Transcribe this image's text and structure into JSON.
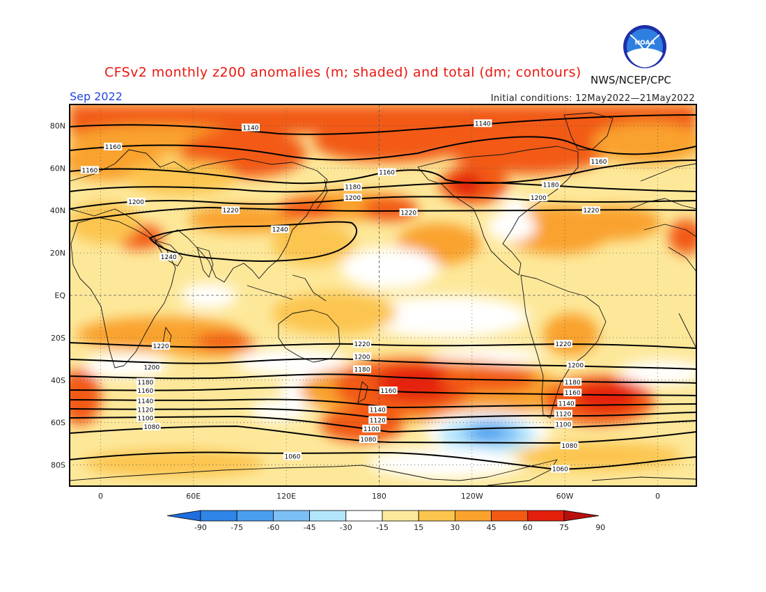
{
  "header": {
    "title": "CFSv2 monthly z200 anomalies (m; shaded) and total (dm; contours)",
    "agency": "NWS/NCEP/CPC",
    "logo_text": "NOAA",
    "valid_month": "Sep 2022",
    "initial_conditions": "Initial conditions: 12May2022—21May2022"
  },
  "map": {
    "lat_labels": [
      "80N",
      "60N",
      "40N",
      "20N",
      "EQ",
      "20S",
      "40S",
      "60S",
      "80S"
    ],
    "lat_values": [
      80,
      60,
      40,
      20,
      0,
      -20,
      -40,
      -60,
      -80
    ],
    "lon_labels": [
      "0",
      "60E",
      "120E",
      "180",
      "120W",
      "60W",
      "0"
    ],
    "lon_values": [
      0,
      60,
      120,
      180,
      240,
      300,
      360
    ],
    "lon_range": [
      -20,
      385
    ],
    "lat_range": [
      -90,
      90
    ]
  },
  "colorbar": {
    "ticks": [
      "-90",
      "-75",
      "-60",
      "-45",
      "-30",
      "-15",
      "15",
      "30",
      "45",
      "60",
      "75",
      "90"
    ],
    "colors": [
      "#1e6ee0",
      "#2f86e8",
      "#4a9ef0",
      "#7cc0f6",
      "#b3e6fb",
      "#ffffff",
      "#fde89a",
      "#fcc54f",
      "#f9a22e",
      "#f25a14",
      "#e4200c",
      "#b8100e"
    ]
  },
  "contour_labels": [
    {
      "text": "1140",
      "lon": 97,
      "lat": 79
    },
    {
      "text": "1140",
      "lon": 247,
      "lat": 81
    },
    {
      "text": "1160",
      "lon": 8,
      "lat": 70
    },
    {
      "text": "1160",
      "lon": -7,
      "lat": 59
    },
    {
      "text": "1160",
      "lon": 185,
      "lat": 58
    },
    {
      "text": "1160",
      "lon": 322,
      "lat": 63
    },
    {
      "text": "1180",
      "lon": 163,
      "lat": 51
    },
    {
      "text": "1180",
      "lon": 291,
      "lat": 52
    },
    {
      "text": "1200",
      "lon": 163,
      "lat": 46
    },
    {
      "text": "1200",
      "lon": 283,
      "lat": 46
    },
    {
      "text": "1200",
      "lon": 23,
      "lat": 44
    },
    {
      "text": "1220",
      "lon": 84,
      "lat": 40
    },
    {
      "text": "1220",
      "lon": 199,
      "lat": 39
    },
    {
      "text": "1220",
      "lon": 317,
      "lat": 40
    },
    {
      "text": "1240",
      "lon": 116,
      "lat": 31
    },
    {
      "text": "1240",
      "lon": 44,
      "lat": 18
    },
    {
      "text": "1220",
      "lon": 39,
      "lat": -24
    },
    {
      "text": "1220",
      "lon": 169,
      "lat": -23
    },
    {
      "text": "1220",
      "lon": 299,
      "lat": -23
    },
    {
      "text": "1200",
      "lon": 169,
      "lat": -29
    },
    {
      "text": "1200",
      "lon": 33,
      "lat": -34
    },
    {
      "text": "1200",
      "lon": 307,
      "lat": -33
    },
    {
      "text": "1180",
      "lon": 169,
      "lat": -35
    },
    {
      "text": "1180",
      "lon": 29,
      "lat": -41
    },
    {
      "text": "1180",
      "lon": 305,
      "lat": -41
    },
    {
      "text": "1160",
      "lon": 186,
      "lat": -45
    },
    {
      "text": "1160",
      "lon": 29,
      "lat": -45
    },
    {
      "text": "1160",
      "lon": 305,
      "lat": -46
    },
    {
      "text": "1140",
      "lon": 179,
      "lat": -54
    },
    {
      "text": "1140",
      "lon": 29,
      "lat": -50
    },
    {
      "text": "1140",
      "lon": 301,
      "lat": -51
    },
    {
      "text": "1120",
      "lon": 179,
      "lat": -59
    },
    {
      "text": "1120",
      "lon": 29,
      "lat": -54
    },
    {
      "text": "1120",
      "lon": 299,
      "lat": -56
    },
    {
      "text": "1100",
      "lon": 175,
      "lat": -63
    },
    {
      "text": "1100",
      "lon": 29,
      "lat": -58
    },
    {
      "text": "1100",
      "lon": 299,
      "lat": -61
    },
    {
      "text": "1080",
      "lon": 173,
      "lat": -68
    },
    {
      "text": "1080",
      "lon": 33,
      "lat": -62
    },
    {
      "text": "1080",
      "lon": 303,
      "lat": -71
    },
    {
      "text": "1060",
      "lon": 124,
      "lat": -76
    },
    {
      "text": "1060",
      "lon": 297,
      "lat": -82
    }
  ]
}
